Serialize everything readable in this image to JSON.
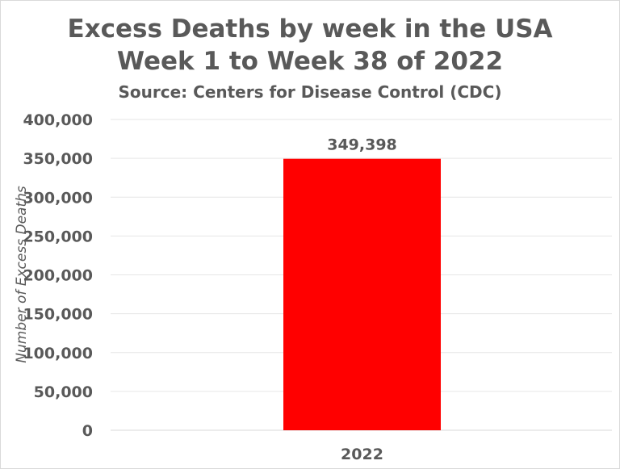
{
  "chart_data": {
    "type": "bar",
    "title": [
      "Excess Deaths by week in the USA",
      "Week 1 to Week 38 of 2022"
    ],
    "subtitle": "Source: Centers for Disease Control (CDC)",
    "xlabel": "",
    "ylabel": "Number of Excess Deaths",
    "categories": [
      "2022"
    ],
    "values": [
      349398
    ],
    "data_labels": [
      "349,398"
    ],
    "ylim": [
      0,
      400000
    ],
    "yticks": [
      0,
      50000,
      100000,
      150000,
      200000,
      250000,
      300000,
      350000,
      400000
    ],
    "ytick_labels": [
      "0",
      "50,000",
      "100,000",
      "150,000",
      "200,000",
      "250,000",
      "300,000",
      "350,000",
      "400,000"
    ],
    "grid": true,
    "legend": "none",
    "bar_color": "#FF0000",
    "text_color": "#595959"
  }
}
